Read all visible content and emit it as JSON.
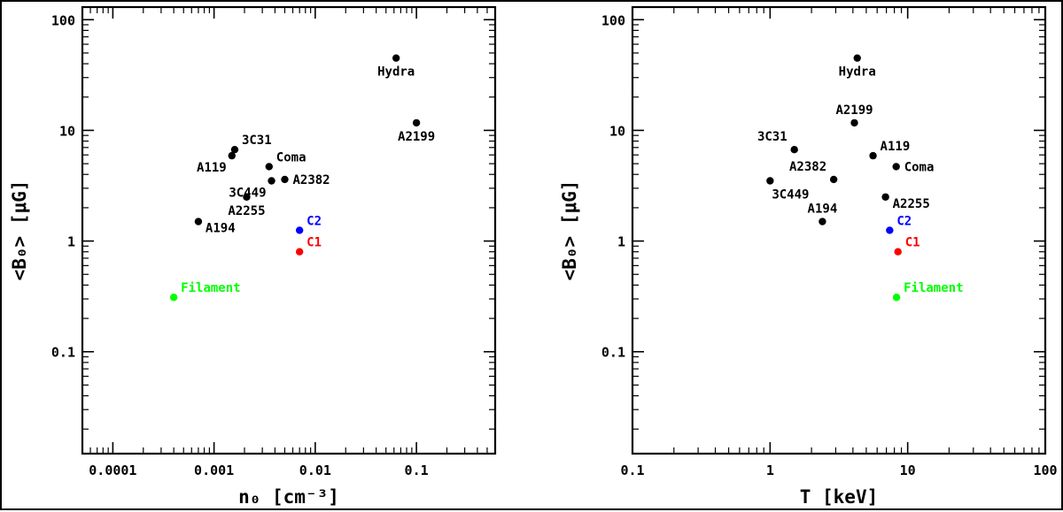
{
  "chart_data": [
    {
      "type": "scatter",
      "xlabel": "n₀ [cm⁻³]",
      "ylabel": "<B₀> [μG]",
      "xscale": "log",
      "yscale": "log",
      "xlim": [
        5e-05,
        0.6
      ],
      "ylim": [
        0.012,
        130
      ],
      "xticks": [
        "0.0001",
        "0.001",
        "0.01",
        "0.1"
      ],
      "xtick_values": [
        0.0001,
        0.001,
        0.01,
        0.1
      ],
      "yticks": [
        "0.1",
        "1",
        "10",
        "100"
      ],
      "ytick_values": [
        0.1,
        1,
        10,
        100
      ],
      "points": [
        {
          "label": "Hydra",
          "x": 0.063,
          "y": 45,
          "color": "#000000",
          "anchor": "below"
        },
        {
          "label": "A2199",
          "x": 0.1,
          "y": 11.7,
          "color": "#000000",
          "anchor": "below"
        },
        {
          "label": "3C31",
          "x": 0.0016,
          "y": 6.7,
          "color": "#000000",
          "anchor": "above-right"
        },
        {
          "label": "A119",
          "x": 0.0015,
          "y": 5.9,
          "color": "#000000",
          "anchor": "below-left"
        },
        {
          "label": "Coma",
          "x": 0.0035,
          "y": 4.7,
          "color": "#000000",
          "anchor": "above-right"
        },
        {
          "label": "A2382",
          "x": 0.005,
          "y": 3.6,
          "color": "#000000",
          "anchor": "right"
        },
        {
          "label": "3C449",
          "x": 0.0037,
          "y": 3.5,
          "color": "#000000",
          "anchor": "below-left"
        },
        {
          "label": "A2255",
          "x": 0.0021,
          "y": 2.5,
          "color": "#000000",
          "anchor": "below"
        },
        {
          "label": "A194",
          "x": 0.0007,
          "y": 1.5,
          "color": "#000000",
          "anchor": "right-below"
        },
        {
          "label": "C2",
          "x": 0.007,
          "y": 1.25,
          "color": "#0000ff",
          "anchor": "above-right"
        },
        {
          "label": "C1",
          "x": 0.007,
          "y": 0.8,
          "color": "#ff0000",
          "anchor": "above-right"
        },
        {
          "label": "Filament",
          "x": 0.0004,
          "y": 0.31,
          "color": "#00ff00",
          "anchor": "above-right"
        }
      ]
    },
    {
      "type": "scatter",
      "xlabel": "T [keV]",
      "ylabel": "<B₀> [μG]",
      "xscale": "log",
      "yscale": "log",
      "xlim": [
        0.1,
        100
      ],
      "ylim": [
        0.012,
        130
      ],
      "xticks": [
        "0.1",
        "1",
        "10",
        "100"
      ],
      "xtick_values": [
        0.1,
        1,
        10,
        100
      ],
      "yticks": [
        "0.1",
        "1",
        "10",
        "100"
      ],
      "ytick_values": [
        0.1,
        1,
        10,
        100
      ],
      "points": [
        {
          "label": "Hydra",
          "x": 4.3,
          "y": 45,
          "color": "#000000",
          "anchor": "below"
        },
        {
          "label": "A2199",
          "x": 4.1,
          "y": 11.7,
          "color": "#000000",
          "anchor": "above"
        },
        {
          "label": "3C31",
          "x": 1.5,
          "y": 6.7,
          "color": "#000000",
          "anchor": "above-left"
        },
        {
          "label": "A119",
          "x": 5.6,
          "y": 5.9,
          "color": "#000000",
          "anchor": "above-right"
        },
        {
          "label": "Coma",
          "x": 8.25,
          "y": 4.7,
          "color": "#000000",
          "anchor": "right"
        },
        {
          "label": "A2382",
          "x": 2.9,
          "y": 3.6,
          "color": "#000000",
          "anchor": "above-left"
        },
        {
          "label": "3C449",
          "x": 1.0,
          "y": 3.5,
          "color": "#000000",
          "anchor": "below-right"
        },
        {
          "label": "A2255",
          "x": 6.9,
          "y": 2.5,
          "color": "#000000",
          "anchor": "right-below"
        },
        {
          "label": "A194",
          "x": 2.4,
          "y": 1.5,
          "color": "#000000",
          "anchor": "above"
        },
        {
          "label": "C2",
          "x": 7.4,
          "y": 1.25,
          "color": "#0000ff",
          "anchor": "above-right"
        },
        {
          "label": "C1",
          "x": 8.5,
          "y": 0.8,
          "color": "#ff0000",
          "anchor": "above-right"
        },
        {
          "label": "Filament",
          "x": 8.3,
          "y": 0.31,
          "color": "#00ff00",
          "anchor": "above-right"
        }
      ]
    }
  ]
}
